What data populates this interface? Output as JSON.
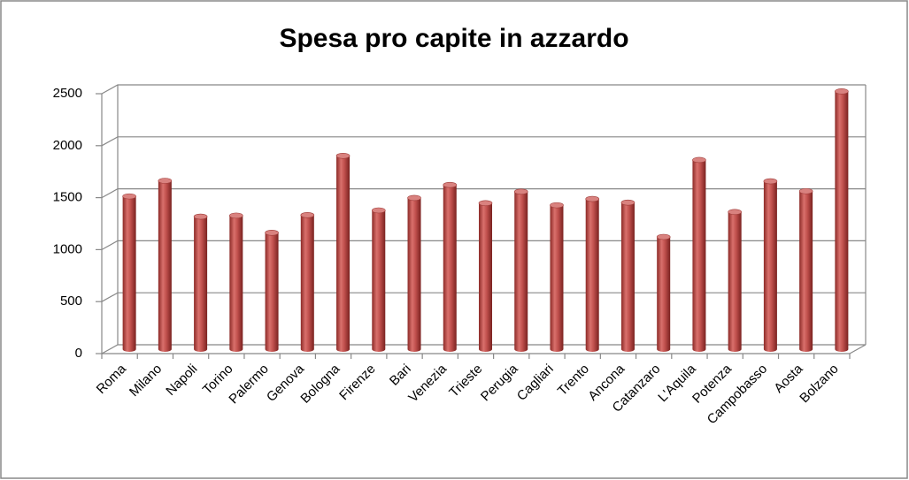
{
  "chart_data": {
    "type": "bar",
    "title": "Spesa pro capite in azzardo",
    "categories": [
      "Roma",
      "Milano",
      "Napoli",
      "Torino",
      "Palermo",
      "Genova",
      "Bologna",
      "Firenze",
      "Bari",
      "Venezia",
      "Trieste",
      "Perugia",
      "Cagliari",
      "Trento",
      "Ancona",
      "Catanzaro",
      "L'Aquila",
      "Potenza",
      "Campobasso",
      "Aosta",
      "Bolzano"
    ],
    "values": [
      1470,
      1620,
      1275,
      1285,
      1120,
      1290,
      1860,
      1335,
      1455,
      1580,
      1405,
      1515,
      1385,
      1445,
      1410,
      1080,
      1820,
      1320,
      1615,
      1520,
      2480
    ],
    "color": "#c0504d",
    "ylim": [
      0,
      2500
    ],
    "yticks": [
      0,
      500,
      1000,
      1500,
      2000,
      2500
    ],
    "grid": true
  }
}
